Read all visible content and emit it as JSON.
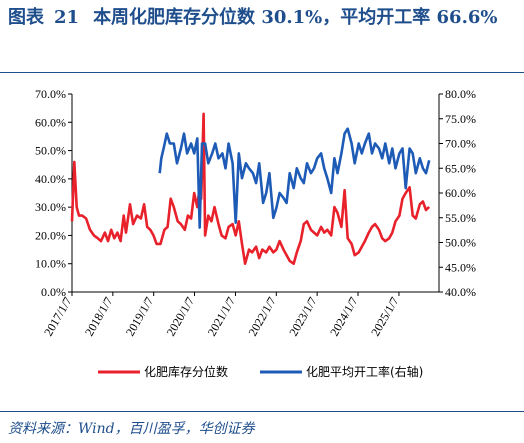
{
  "header": {
    "fig_label": "图表",
    "fig_number": "21",
    "title": "本周化肥库存分位数 30.1%，平均开工率 66.6%"
  },
  "footer": {
    "source": "资料来源：Wind，百川盈孚，华创证券"
  },
  "chart_data": {
    "type": "line",
    "title": "本周化肥库存分位数 30.1%，平均开工率 66.6%",
    "x_ticks": [
      "2017/1/7",
      "2018/1/7",
      "2019/1/7",
      "2020/1/7",
      "2021/1/7",
      "2022/1/7",
      "2023/1/7",
      "2024/1/7",
      "2025/1/7"
    ],
    "x_range": [
      "2017-01-07",
      "2025-12-31"
    ],
    "left_axis": {
      "ticks": [
        "0.0%",
        "10.0%",
        "20.0%",
        "30.0%",
        "40.0%",
        "50.0%",
        "60.0%",
        "70.0%"
      ],
      "ylim": [
        0,
        70
      ]
    },
    "right_axis": {
      "ticks": [
        "40.0%",
        "45.0%",
        "50.0%",
        "55.0%",
        "60.0%",
        "65.0%",
        "70.0%",
        "75.0%",
        "80.0%"
      ],
      "ylim": [
        40,
        80
      ]
    },
    "legend_placement": "bottom",
    "series": [
      {
        "name": "化肥库存分位数",
        "axis": "left",
        "color": "#e8212b",
        "points": [
          [
            "2017-01-07",
            25
          ],
          [
            "2017-01-28",
            46
          ],
          [
            "2017-02-18",
            30
          ],
          [
            "2017-03-11",
            27
          ],
          [
            "2017-04-08",
            27
          ],
          [
            "2017-05-13",
            26
          ],
          [
            "2017-06-17",
            22
          ],
          [
            "2017-07-22",
            20
          ],
          [
            "2017-08-26",
            19
          ],
          [
            "2017-09-23",
            18
          ],
          [
            "2017-10-28",
            21
          ],
          [
            "2017-11-25",
            18
          ],
          [
            "2017-12-23",
            22
          ],
          [
            "2018-01-20",
            19
          ],
          [
            "2018-02-17",
            21
          ],
          [
            "2018-03-17",
            18
          ],
          [
            "2018-04-14",
            27
          ],
          [
            "2018-05-05",
            21
          ],
          [
            "2018-06-09",
            31
          ],
          [
            "2018-07-07",
            24
          ],
          [
            "2018-08-11",
            27
          ],
          [
            "2018-09-15",
            26
          ],
          [
            "2018-10-13",
            31
          ],
          [
            "2018-11-10",
            23
          ],
          [
            "2018-12-08",
            22
          ],
          [
            "2019-01-05",
            20
          ],
          [
            "2019-02-02",
            17
          ],
          [
            "2019-03-09",
            17
          ],
          [
            "2019-04-13",
            22
          ],
          [
            "2019-05-11",
            23
          ],
          [
            "2019-06-08",
            33
          ],
          [
            "2019-07-06",
            30
          ],
          [
            "2019-08-10",
            25
          ],
          [
            "2019-09-07",
            24
          ],
          [
            "2019-10-12",
            22
          ],
          [
            "2019-11-09",
            27
          ],
          [
            "2019-12-07",
            26
          ],
          [
            "2020-01-04",
            35
          ],
          [
            "2020-02-01",
            30
          ],
          [
            "2020-02-15",
            35
          ],
          [
            "2020-03-07",
            33
          ],
          [
            "2020-03-28",
            63
          ],
          [
            "2020-04-11",
            20
          ],
          [
            "2020-05-09",
            27
          ],
          [
            "2020-06-06",
            25
          ],
          [
            "2020-07-04",
            30
          ],
          [
            "2020-08-08",
            24
          ],
          [
            "2020-09-05",
            20
          ],
          [
            "2020-10-10",
            19
          ],
          [
            "2020-11-07",
            23
          ],
          [
            "2020-12-12",
            24
          ],
          [
            "2021-01-09",
            20
          ],
          [
            "2021-02-06",
            25
          ],
          [
            "2021-03-06",
            17
          ],
          [
            "2021-04-03",
            10
          ],
          [
            "2021-05-08",
            15
          ],
          [
            "2021-06-05",
            14
          ],
          [
            "2021-07-10",
            16
          ],
          [
            "2021-08-07",
            12
          ],
          [
            "2021-09-04",
            15
          ],
          [
            "2021-10-09",
            14
          ],
          [
            "2021-11-06",
            16
          ],
          [
            "2021-12-11",
            14
          ],
          [
            "2022-01-08",
            15
          ],
          [
            "2022-02-05",
            18
          ],
          [
            "2022-03-12",
            15
          ],
          [
            "2022-04-09",
            13
          ],
          [
            "2022-05-07",
            11
          ],
          [
            "2022-06-11",
            10
          ],
          [
            "2022-07-09",
            14
          ],
          [
            "2022-08-13",
            18
          ],
          [
            "2022-09-10",
            24
          ],
          [
            "2022-10-08",
            25
          ],
          [
            "2022-11-12",
            22
          ],
          [
            "2022-12-10",
            21
          ],
          [
            "2023-01-07",
            20
          ],
          [
            "2023-02-11",
            23
          ],
          [
            "2023-03-11",
            21
          ],
          [
            "2023-04-08",
            22
          ],
          [
            "2023-05-13",
            20
          ],
          [
            "2023-06-10",
            30
          ],
          [
            "2023-07-08",
            28
          ],
          [
            "2023-08-12",
            23
          ],
          [
            "2023-09-09",
            36
          ],
          [
            "2023-10-07",
            19
          ],
          [
            "2023-11-11",
            17
          ],
          [
            "2023-12-09",
            13
          ],
          [
            "2024-01-13",
            14
          ],
          [
            "2024-02-10",
            16
          ],
          [
            "2024-03-09",
            18
          ],
          [
            "2024-04-13",
            21
          ],
          [
            "2024-05-11",
            23
          ],
          [
            "2024-06-08",
            24
          ],
          [
            "2024-07-13",
            22
          ],
          [
            "2024-08-10",
            19
          ],
          [
            "2024-09-07",
            18
          ],
          [
            "2024-10-12",
            19
          ],
          [
            "2024-11-09",
            21
          ],
          [
            "2024-12-07",
            25
          ],
          [
            "2025-01-11",
            27
          ],
          [
            "2025-02-08",
            33
          ],
          [
            "2025-03-08",
            35
          ],
          [
            "2025-04-12",
            37
          ],
          [
            "2025-05-10",
            27
          ],
          [
            "2025-06-07",
            26
          ],
          [
            "2025-07-12",
            31
          ],
          [
            "2025-08-09",
            32
          ],
          [
            "2025-09-06",
            29
          ],
          [
            "2025-10-04",
            30.1
          ]
        ]
      },
      {
        "name": "化肥平均开工率(右轴)",
        "axis": "right",
        "color": "#1d5bb7",
        "points": [
          [
            "2019-03-02",
            64
          ],
          [
            "2019-03-16",
            67
          ],
          [
            "2019-04-06",
            69
          ],
          [
            "2019-05-04",
            72
          ],
          [
            "2019-06-01",
            70
          ],
          [
            "2019-07-06",
            70
          ],
          [
            "2019-08-03",
            66
          ],
          [
            "2019-09-07",
            69
          ],
          [
            "2019-10-05",
            72
          ],
          [
            "2019-11-02",
            68
          ],
          [
            "2019-12-07",
            70
          ],
          [
            "2020-01-04",
            68
          ],
          [
            "2020-02-01",
            71
          ],
          [
            "2020-02-22",
            53
          ],
          [
            "2020-03-14",
            70
          ],
          [
            "2020-04-11",
            70
          ],
          [
            "2020-05-09",
            66
          ],
          [
            "2020-06-13",
            68
          ],
          [
            "2020-07-11",
            70
          ],
          [
            "2020-08-08",
            67
          ],
          [
            "2020-09-12",
            68
          ],
          [
            "2020-10-10",
            65
          ],
          [
            "2020-11-07",
            70
          ],
          [
            "2020-12-12",
            66
          ],
          [
            "2021-01-09",
            54
          ],
          [
            "2021-02-06",
            68
          ],
          [
            "2021-03-06",
            63
          ],
          [
            "2021-04-10",
            66
          ],
          [
            "2021-05-08",
            65
          ],
          [
            "2021-06-12",
            64
          ],
          [
            "2021-07-10",
            62
          ],
          [
            "2021-08-07",
            66
          ],
          [
            "2021-09-11",
            58
          ],
          [
            "2021-10-09",
            60
          ],
          [
            "2021-11-06",
            64
          ],
          [
            "2021-12-11",
            55
          ],
          [
            "2022-01-08",
            57
          ],
          [
            "2022-02-05",
            60
          ],
          [
            "2022-03-12",
            59
          ],
          [
            "2022-04-09",
            58
          ],
          [
            "2022-05-07",
            64
          ],
          [
            "2022-06-11",
            61
          ],
          [
            "2022-07-09",
            65
          ],
          [
            "2022-08-13",
            63
          ],
          [
            "2022-09-10",
            62
          ],
          [
            "2022-10-08",
            66
          ],
          [
            "2022-11-12",
            64
          ],
          [
            "2022-12-10",
            65
          ],
          [
            "2023-01-07",
            67
          ],
          [
            "2023-02-11",
            68
          ],
          [
            "2023-03-11",
            65
          ],
          [
            "2023-04-08",
            63
          ],
          [
            "2023-05-13",
            60
          ],
          [
            "2023-06-10",
            67
          ],
          [
            "2023-07-08",
            64
          ],
          [
            "2023-08-12",
            68
          ],
          [
            "2023-09-09",
            72
          ],
          [
            "2023-10-07",
            73
          ],
          [
            "2023-11-11",
            70
          ],
          [
            "2023-12-09",
            66
          ],
          [
            "2024-01-13",
            70
          ],
          [
            "2024-02-10",
            68
          ],
          [
            "2024-03-09",
            70
          ],
          [
            "2024-04-13",
            72
          ],
          [
            "2024-05-11",
            68
          ],
          [
            "2024-06-08",
            70
          ],
          [
            "2024-07-13",
            69
          ],
          [
            "2024-08-10",
            67
          ],
          [
            "2024-09-07",
            70
          ],
          [
            "2024-10-12",
            66
          ],
          [
            "2024-11-09",
            69
          ],
          [
            "2024-12-07",
            65
          ],
          [
            "2025-01-11",
            68
          ],
          [
            "2025-02-08",
            69
          ],
          [
            "2025-03-08",
            61
          ],
          [
            "2025-04-12",
            69
          ],
          [
            "2025-05-10",
            68
          ],
          [
            "2025-06-07",
            64
          ],
          [
            "2025-07-12",
            67
          ],
          [
            "2025-08-09",
            65
          ],
          [
            "2025-09-06",
            64
          ],
          [
            "2025-10-04",
            66.6
          ]
        ]
      }
    ]
  }
}
